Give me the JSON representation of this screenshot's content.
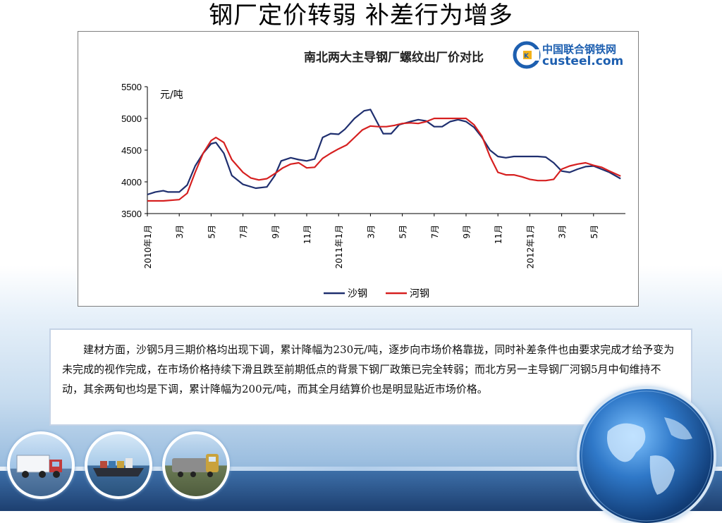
{
  "slide": {
    "title": "钢厂定价转弱  补差行为增多",
    "paragraph": "建材方面，沙钢5月三期价格均出现下调，累计降幅为230元/吨，逐步向市场价格靠拢，同时补差条件也由要求完成才给予变为未完成的视作完成，在市场价格持续下滑且跌至前期低点的背景下钢厂政策已完全转弱；而北方另一主导钢厂河钢5月中旬维持不动，其余两旬也均是下调，累计降幅为200元/吨，而其全月结算价也是明显贴近市场价格。"
  },
  "logo": {
    "cn": "中国联合钢铁网",
    "en": "custeel.com"
  },
  "chart_data": {
    "type": "line",
    "title": "南北两大主导钢厂螺纹出厂价对比",
    "ylabel": "元/吨",
    "ylim": [
      3500,
      5500
    ],
    "yticks": [
      3500,
      4000,
      4500,
      5000,
      5500
    ],
    "x_range": [
      0,
      29
    ],
    "xticks": [
      {
        "x": 0,
        "label": "2010年1月"
      },
      {
        "x": 2,
        "label": "3月"
      },
      {
        "x": 4,
        "label": "5月"
      },
      {
        "x": 6,
        "label": "7月"
      },
      {
        "x": 8,
        "label": "9月"
      },
      {
        "x": 10,
        "label": "11月"
      },
      {
        "x": 12,
        "label": "2011年1月"
      },
      {
        "x": 14,
        "label": "3月"
      },
      {
        "x": 16,
        "label": "5月"
      },
      {
        "x": 18,
        "label": "7月"
      },
      {
        "x": 20,
        "label": "9月"
      },
      {
        "x": 22,
        "label": "11月"
      },
      {
        "x": 24,
        "label": "2012年1月"
      },
      {
        "x": 26,
        "label": "3月"
      },
      {
        "x": 28,
        "label": "5月"
      }
    ],
    "legend_position": "bottom",
    "series": [
      {
        "name": "沙钢",
        "color": "#1f2f6f",
        "points": [
          [
            0.0,
            3800
          ],
          [
            0.5,
            3840
          ],
          [
            1.0,
            3860
          ],
          [
            1.3,
            3840
          ],
          [
            2.0,
            3840
          ],
          [
            2.5,
            3950
          ],
          [
            3.0,
            4250
          ],
          [
            3.5,
            4450
          ],
          [
            4.0,
            4600
          ],
          [
            4.3,
            4620
          ],
          [
            4.8,
            4450
          ],
          [
            5.3,
            4100
          ],
          [
            6.0,
            3960
          ],
          [
            6.8,
            3900
          ],
          [
            7.5,
            3920
          ],
          [
            8.0,
            4100
          ],
          [
            8.4,
            4330
          ],
          [
            9.0,
            4380
          ],
          [
            9.5,
            4350
          ],
          [
            10.0,
            4330
          ],
          [
            10.5,
            4360
          ],
          [
            11.0,
            4700
          ],
          [
            11.5,
            4760
          ],
          [
            12.0,
            4750
          ],
          [
            12.4,
            4830
          ],
          [
            13.0,
            5000
          ],
          [
            13.6,
            5120
          ],
          [
            14.0,
            5140
          ],
          [
            14.4,
            4950
          ],
          [
            14.8,
            4760
          ],
          [
            15.3,
            4760
          ],
          [
            15.8,
            4900
          ],
          [
            16.5,
            4950
          ],
          [
            17.0,
            4980
          ],
          [
            17.5,
            4960
          ],
          [
            18.0,
            4870
          ],
          [
            18.5,
            4870
          ],
          [
            19.0,
            4950
          ],
          [
            19.5,
            4980
          ],
          [
            20.0,
            4950
          ],
          [
            20.5,
            4860
          ],
          [
            21.0,
            4700
          ],
          [
            21.5,
            4500
          ],
          [
            22.0,
            4400
          ],
          [
            22.5,
            4380
          ],
          [
            23.0,
            4400
          ],
          [
            23.5,
            4400
          ],
          [
            24.0,
            4400
          ],
          [
            24.5,
            4400
          ],
          [
            25.0,
            4390
          ],
          [
            25.5,
            4300
          ],
          [
            26.0,
            4170
          ],
          [
            26.5,
            4150
          ],
          [
            27.0,
            4200
          ],
          [
            27.5,
            4240
          ],
          [
            28.0,
            4250
          ],
          [
            28.5,
            4200
          ],
          [
            29.0,
            4150
          ],
          [
            29.7,
            4050
          ]
        ]
      },
      {
        "name": "河钢",
        "color": "#d62020",
        "points": [
          [
            0.0,
            3700
          ],
          [
            1.0,
            3700
          ],
          [
            2.0,
            3720
          ],
          [
            2.5,
            3820
          ],
          [
            3.0,
            4150
          ],
          [
            3.5,
            4450
          ],
          [
            4.0,
            4650
          ],
          [
            4.3,
            4700
          ],
          [
            4.8,
            4620
          ],
          [
            5.3,
            4350
          ],
          [
            6.0,
            4150
          ],
          [
            6.5,
            4060
          ],
          [
            7.0,
            4030
          ],
          [
            7.5,
            4050
          ],
          [
            8.0,
            4130
          ],
          [
            8.5,
            4220
          ],
          [
            9.0,
            4280
          ],
          [
            9.5,
            4300
          ],
          [
            10.0,
            4220
          ],
          [
            10.5,
            4230
          ],
          [
            11.0,
            4370
          ],
          [
            11.5,
            4450
          ],
          [
            12.0,
            4520
          ],
          [
            12.5,
            4580
          ],
          [
            13.0,
            4700
          ],
          [
            13.5,
            4820
          ],
          [
            14.0,
            4880
          ],
          [
            14.5,
            4870
          ],
          [
            15.0,
            4870
          ],
          [
            15.5,
            4890
          ],
          [
            16.0,
            4920
          ],
          [
            16.5,
            4930
          ],
          [
            17.0,
            4920
          ],
          [
            17.5,
            4950
          ],
          [
            18.0,
            5000
          ],
          [
            19.0,
            5000
          ],
          [
            20.0,
            5000
          ],
          [
            20.5,
            4900
          ],
          [
            21.0,
            4720
          ],
          [
            21.5,
            4400
          ],
          [
            22.0,
            4150
          ],
          [
            22.5,
            4110
          ],
          [
            23.0,
            4110
          ],
          [
            23.5,
            4080
          ],
          [
            24.0,
            4040
          ],
          [
            24.5,
            4020
          ],
          [
            25.0,
            4020
          ],
          [
            25.5,
            4040
          ],
          [
            26.0,
            4200
          ],
          [
            26.5,
            4250
          ],
          [
            27.0,
            4280
          ],
          [
            27.5,
            4300
          ],
          [
            28.0,
            4260
          ],
          [
            28.5,
            4230
          ],
          [
            29.0,
            4170
          ],
          [
            29.7,
            4090
          ]
        ]
      }
    ]
  }
}
